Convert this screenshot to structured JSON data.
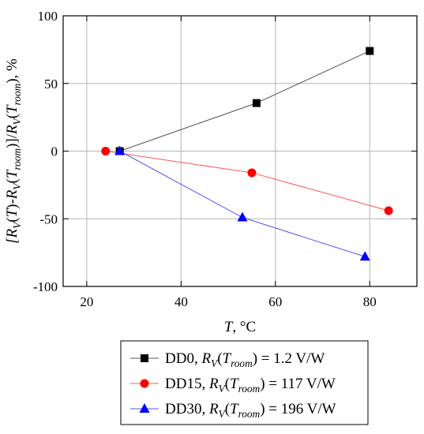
{
  "chart_data": {
    "type": "line",
    "title": "",
    "xlabel": {
      "italic": "T",
      "rest": ", °C"
    },
    "ylabel": [
      {
        "t": "[R",
        "i": true
      },
      {
        "t": "V",
        "i": true,
        "sub": true
      },
      {
        "t": "("
      },
      {
        "t": "T",
        "i": true
      },
      {
        "t": ")-"
      },
      {
        "t": "R",
        "i": true
      },
      {
        "t": "V",
        "i": true,
        "sub": true
      },
      {
        "t": "("
      },
      {
        "t": "T",
        "i": true
      },
      {
        "t": "room",
        "i": true,
        "sub": true
      },
      {
        "t": ")]/"
      },
      {
        "t": "R",
        "i": true
      },
      {
        "t": "V",
        "i": true,
        "sub": true
      },
      {
        "t": "("
      },
      {
        "t": "T",
        "i": true
      },
      {
        "t": "room",
        "i": true,
        "sub": true
      },
      {
        "t": "), %"
      }
    ],
    "xlim": [
      15,
      90
    ],
    "ylim": [
      -100,
      100
    ],
    "xticks": [
      20,
      40,
      60,
      80
    ],
    "yticks": [
      -100,
      -50,
      0,
      50,
      100
    ],
    "grid": true,
    "legend_position": "bottom-outside",
    "series": [
      {
        "name": "DD0, R_V(T_room) = 1.2 V/W",
        "label_parts": [
          {
            "t": "DD0, "
          },
          {
            "t": "R",
            "i": true
          },
          {
            "t": "V",
            "i": true,
            "sub": true
          },
          {
            "t": "("
          },
          {
            "t": "T",
            "i": true
          },
          {
            "t": "room",
            "i": true,
            "sub": true
          },
          {
            "t": ") = 1.2 V/W"
          }
        ],
        "marker": "square",
        "color": "#000000",
        "line_color": "#555555",
        "x": [
          27,
          56,
          80
        ],
        "y": [
          0,
          35.5,
          74
        ]
      },
      {
        "name": "DD15, R_V(T_room) = 117 V/W",
        "label_parts": [
          {
            "t": "DD15, "
          },
          {
            "t": "R",
            "i": true
          },
          {
            "t": "V",
            "i": true,
            "sub": true
          },
          {
            "t": "("
          },
          {
            "t": "T",
            "i": true
          },
          {
            "t": "room",
            "i": true,
            "sub": true
          },
          {
            "t": ") = 117 V/W"
          }
        ],
        "marker": "circle",
        "color": "#ff0000",
        "line_color": "#ff5555",
        "x": [
          24,
          55,
          84
        ],
        "y": [
          0,
          -16,
          -44
        ]
      },
      {
        "name": "DD30, R_V(T_room) = 196 V/W",
        "label_parts": [
          {
            "t": "DD30, "
          },
          {
            "t": "R",
            "i": true
          },
          {
            "t": "V",
            "i": true,
            "sub": true
          },
          {
            "t": "("
          },
          {
            "t": "T",
            "i": true
          },
          {
            "t": "room",
            "i": true,
            "sub": true
          },
          {
            "t": ") = 196 V/W"
          }
        ],
        "marker": "triangle",
        "color": "#0000ff",
        "line_color": "#5555ff",
        "x": [
          27,
          53,
          79
        ],
        "y": [
          0,
          -49,
          -78
        ]
      }
    ]
  }
}
